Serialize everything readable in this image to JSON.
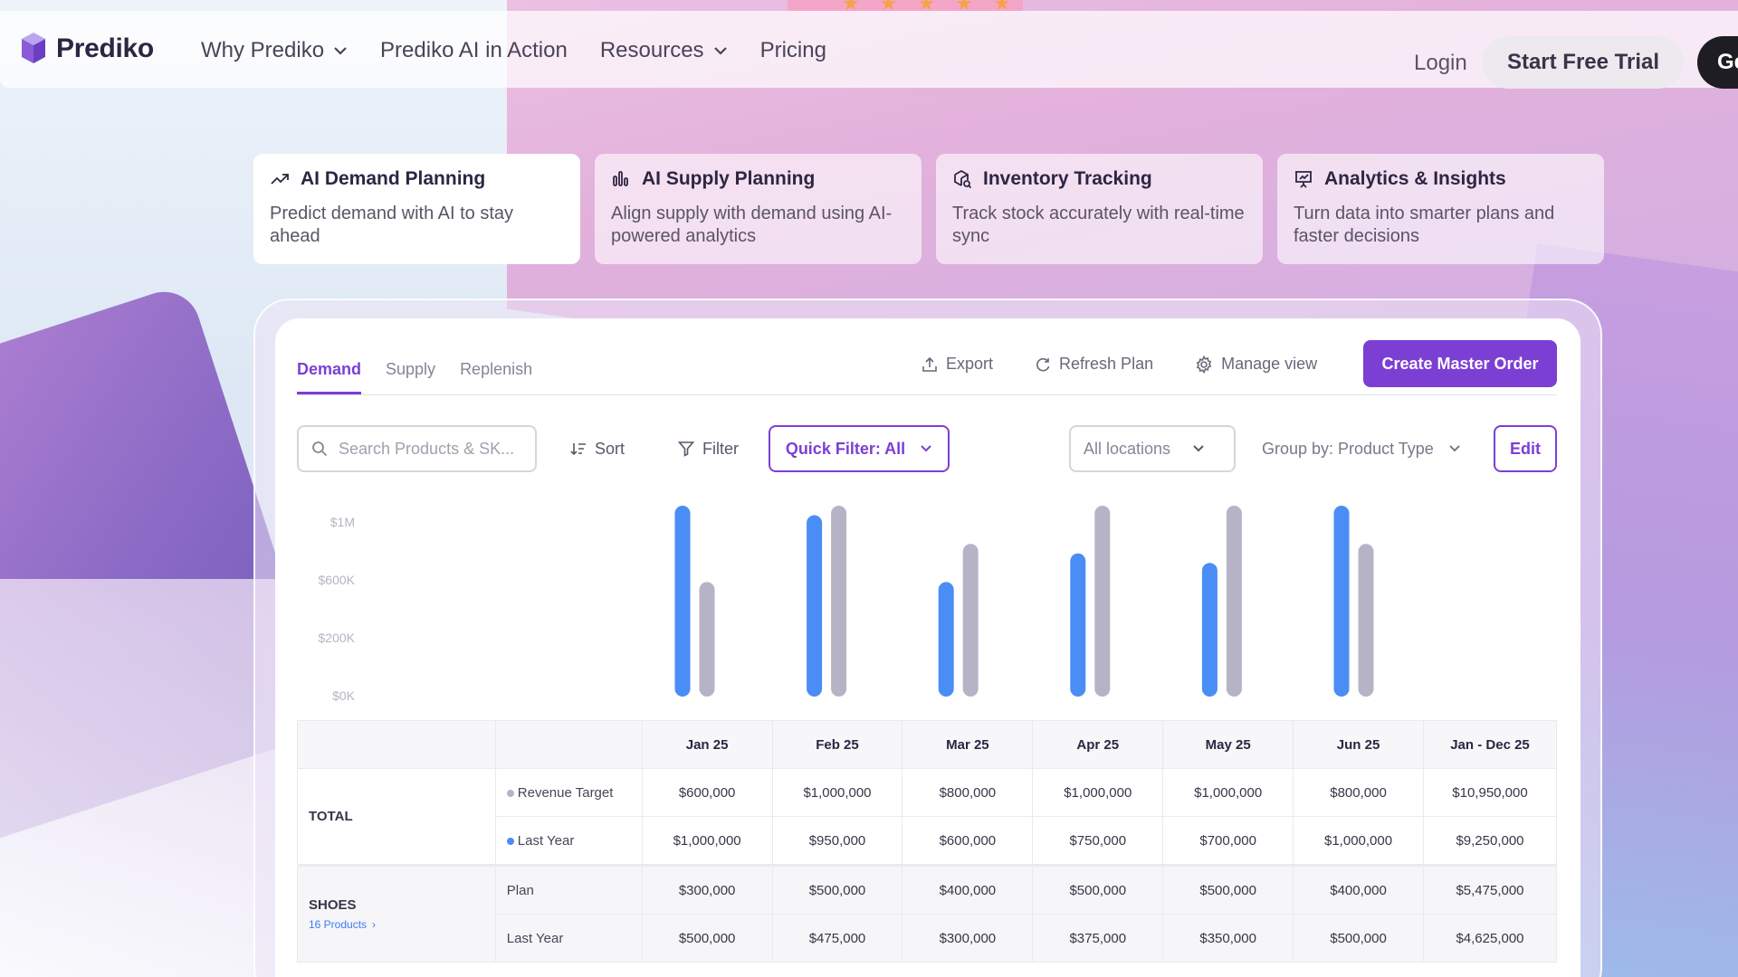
{
  "brand": {
    "name": "Prediko"
  },
  "nav": {
    "items": [
      {
        "label": "Why Prediko",
        "dropdown": true
      },
      {
        "label": "Prediko AI in Action",
        "dropdown": false
      },
      {
        "label": "Resources",
        "dropdown": true
      },
      {
        "label": "Pricing",
        "dropdown": false
      }
    ],
    "login": "Login",
    "trial": "Start Free Trial",
    "cta_partial": "Ge"
  },
  "features": [
    {
      "title": "AI Demand Planning",
      "desc": "Predict demand with AI to stay ahead",
      "icon": "trend-up-icon",
      "active": true
    },
    {
      "title": "AI Supply Planning",
      "desc": "Align supply with demand using AI-powered analytics",
      "icon": "bar-chart-icon",
      "active": false
    },
    {
      "title": "Inventory Tracking",
      "desc": "Track stock accurately with real-time sync",
      "icon": "box-search-icon",
      "active": false
    },
    {
      "title": "Analytics & Insights",
      "desc": "Turn data into smarter plans and faster decisions",
      "icon": "presentation-chart-icon",
      "active": false
    }
  ],
  "dashboard": {
    "tabs": [
      {
        "label": "Demand",
        "active": true
      },
      {
        "label": "Supply",
        "active": false
      },
      {
        "label": "Replenish",
        "active": false
      }
    ],
    "actions": {
      "export": "Export",
      "refresh": "Refresh Plan",
      "manage": "Manage view",
      "create": "Create Master Order"
    },
    "toolbar": {
      "search_placeholder": "Search Products & SK...",
      "sort": "Sort",
      "filter": "Filter",
      "quick_filter": "Quick Filter: All",
      "locations": "All locations",
      "group_by": "Group by: Product Type",
      "edit": "Edit"
    }
  },
  "colors": {
    "accent": "#7b3fd4",
    "series_blue": "#4a8df5",
    "series_gray": "#b7b3c6"
  },
  "chart_data": {
    "type": "bar",
    "categories": [
      "Jan 25",
      "Feb 25",
      "Mar 25",
      "Apr 25",
      "May 25",
      "Jun 25"
    ],
    "series": [
      {
        "name": "Last Year",
        "values": [
          1000000,
          950000,
          600000,
          750000,
          700000,
          1000000
        ]
      },
      {
        "name": "Revenue Target",
        "values": [
          600000,
          1000000,
          800000,
          1000000,
          1000000,
          800000
        ]
      }
    ],
    "ytick_labels": [
      "$1M",
      "$600K",
      "$200K",
      "$0K"
    ],
    "ylim": [
      0,
      1000000
    ]
  },
  "table": {
    "headers": [
      "",
      "",
      "Jan 25",
      "Feb 25",
      "Mar 25",
      "Apr 25",
      "May 25",
      "Jun 25",
      "Jan - Dec 25"
    ],
    "groups": [
      {
        "name": "TOTAL",
        "sub": "",
        "rows": [
          {
            "label": "Revenue Target",
            "dot": "#b7b3c6",
            "values": [
              "$600,000",
              "$1,000,000",
              "$800,000",
              "$1,000,000",
              "$1,000,000",
              "$800,000",
              "$10,950,000"
            ]
          },
          {
            "label": "Last Year",
            "dot": "#4a8df5",
            "values": [
              "$1,000,000",
              "$950,000",
              "$600,000",
              "$750,000",
              "$700,000",
              "$1,000,000",
              "$9,250,000"
            ]
          }
        ]
      },
      {
        "name": "SHOES",
        "sub": "16 Products",
        "rows": [
          {
            "label": "Plan",
            "dot": "",
            "values": [
              "$300,000",
              "$500,000",
              "$400,000",
              "$500,000",
              "$500,000",
              "$400,000",
              "$5,475,000"
            ]
          },
          {
            "label": "Last Year",
            "dot": "",
            "values": [
              "$500,000",
              "$475,000",
              "$300,000",
              "$375,000",
              "$350,000",
              "$500,000",
              "$4,625,000"
            ]
          }
        ]
      }
    ]
  }
}
